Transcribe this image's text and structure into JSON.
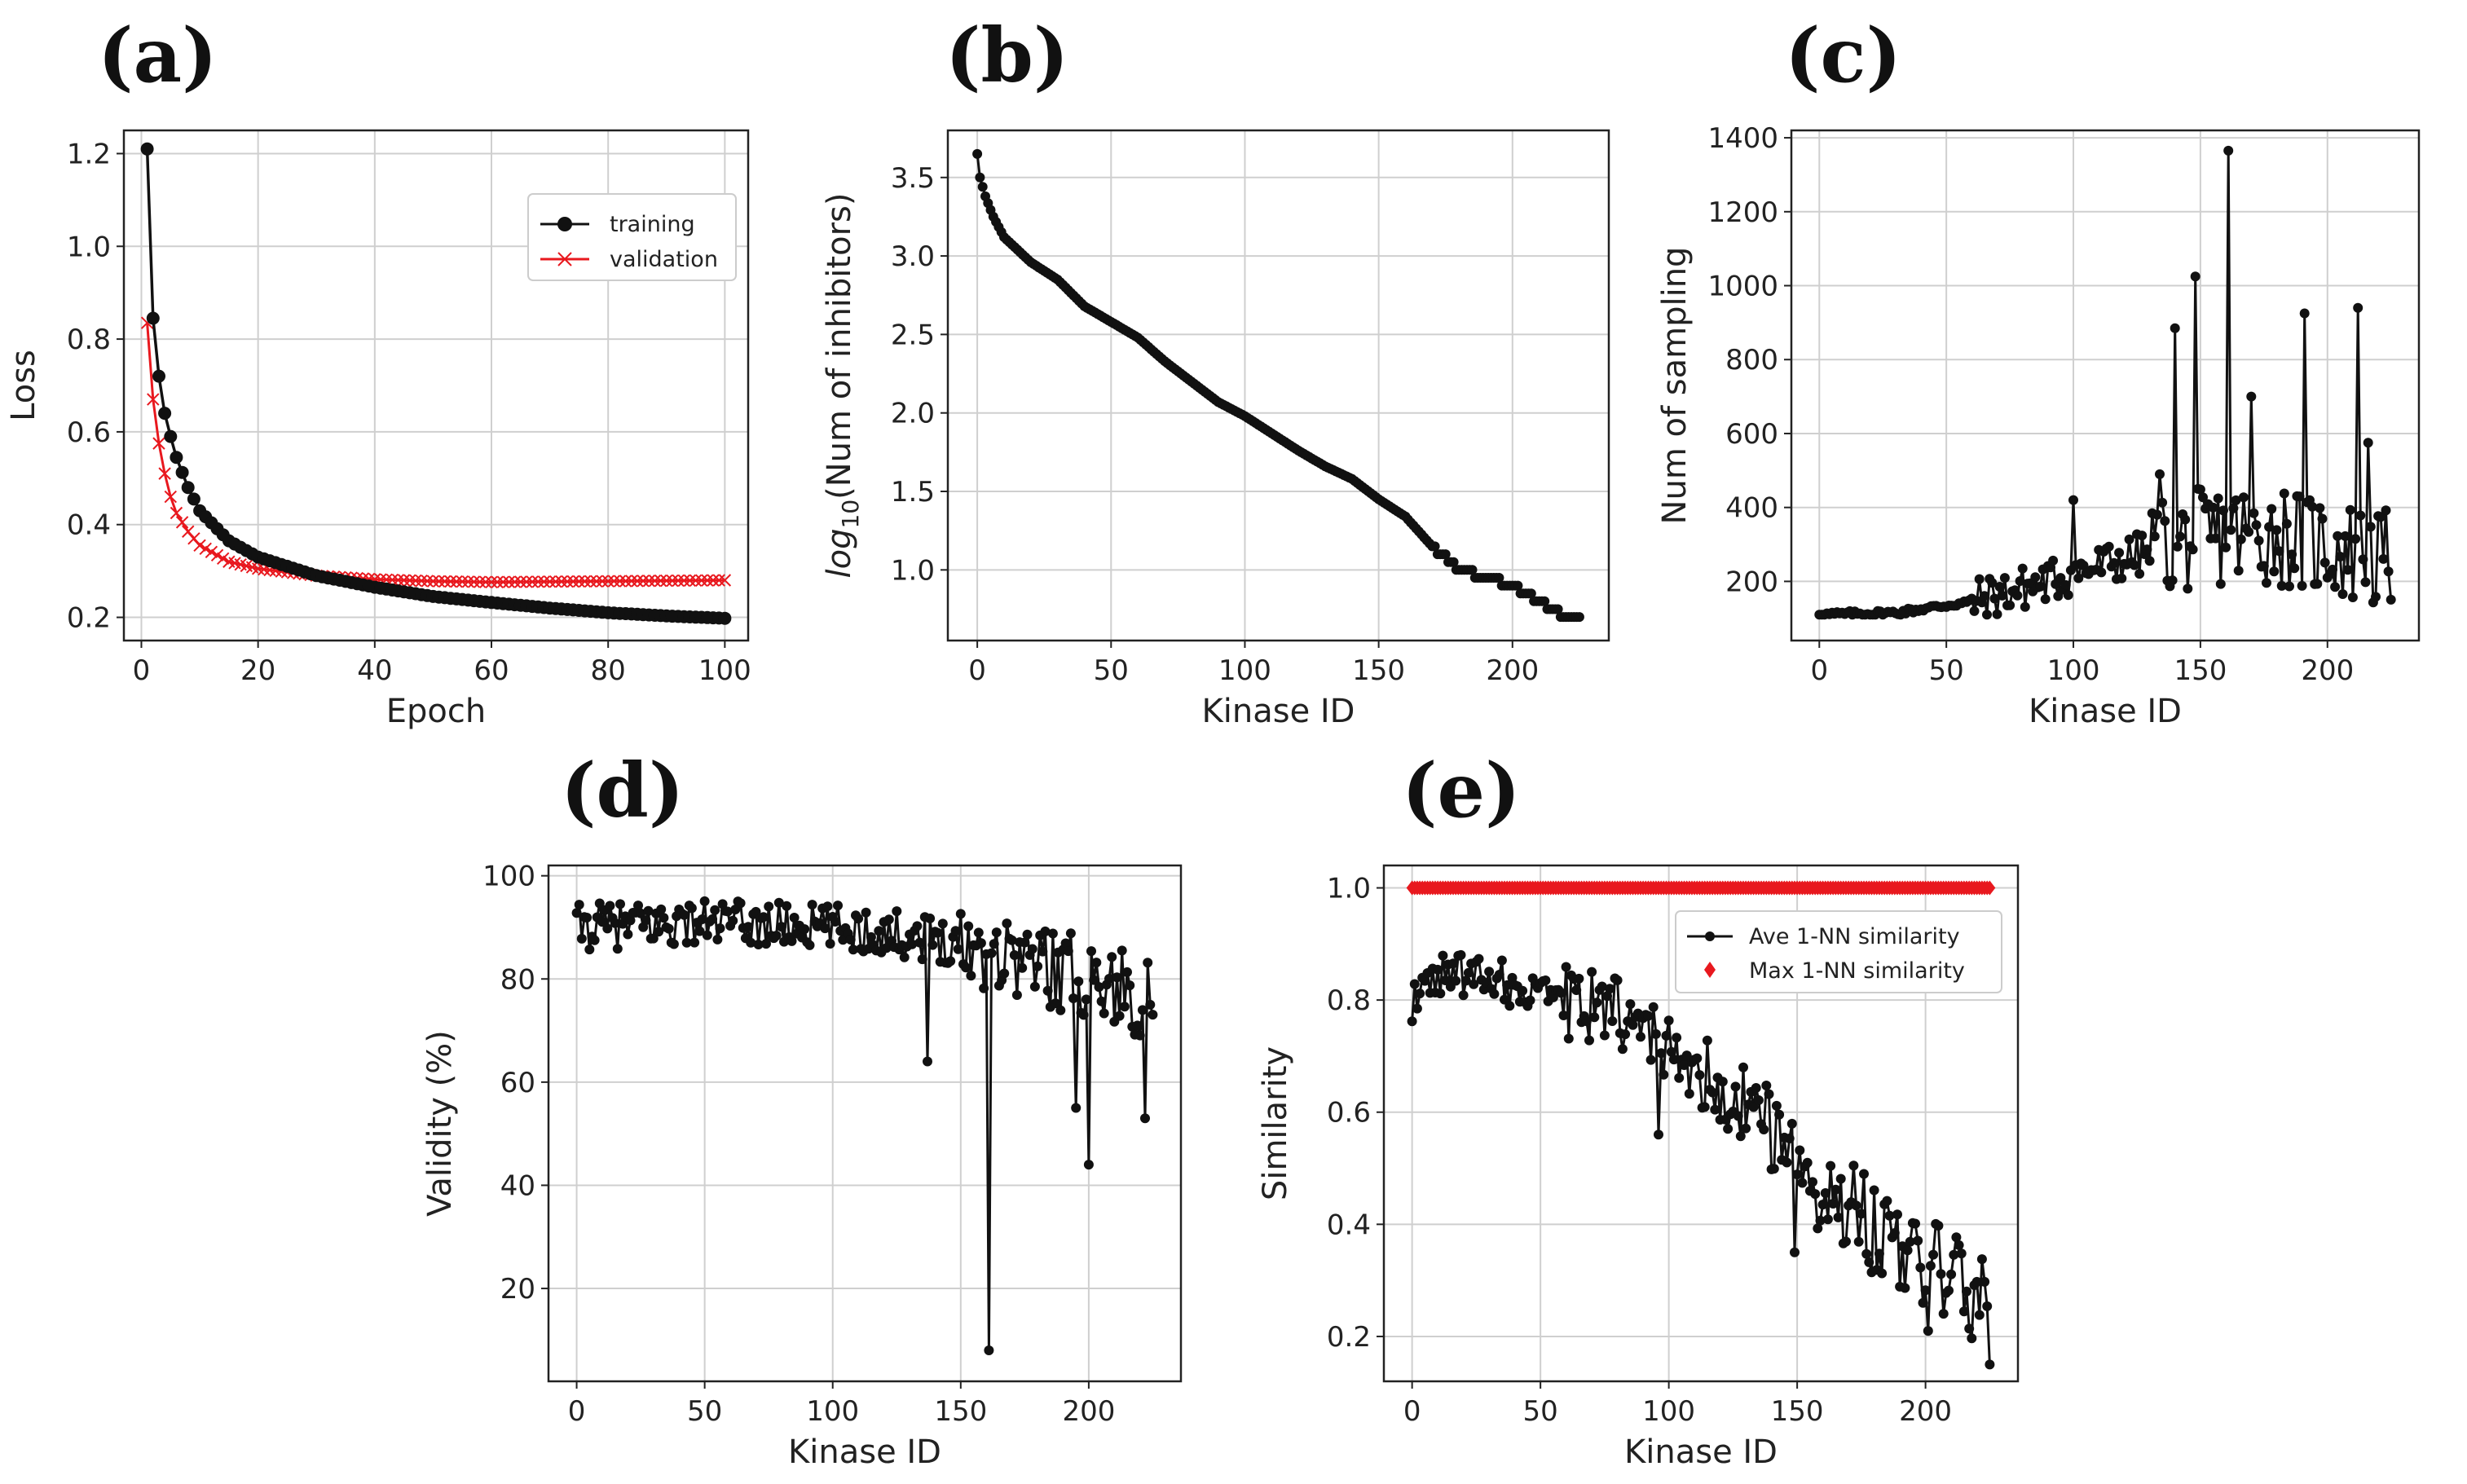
{
  "figure": {
    "colors": {
      "black": "#111111",
      "red": "#e8181e",
      "grid": "#cfcfcf"
    }
  },
  "chart_data": [
    {
      "panel": "(a)",
      "type": "line",
      "xlabel": "Epoch",
      "ylabel": "Loss",
      "xlim": [
        -3,
        104
      ],
      "ylim": [
        0.15,
        1.25
      ],
      "xticks": [
        0,
        20,
        40,
        60,
        80,
        100
      ],
      "xtick_labels": [
        "0",
        "20",
        "40",
        "60",
        "80",
        "100"
      ],
      "yticks": [
        0.2,
        0.4,
        0.6,
        0.8,
        1.0,
        1.2
      ],
      "ytick_labels": [
        "0.2",
        "0.4",
        "0.6",
        "0.8",
        "1.0",
        "1.2"
      ],
      "legend": {
        "placement": "top-right",
        "entries": [
          "training",
          "validation"
        ]
      },
      "series": [
        {
          "name": "training",
          "color": "#111111",
          "marker": "dot",
          "model": {
            "x_from": 1,
            "x_to": 100,
            "step": 1
          },
          "key_points": {
            "x": [
              1,
              2,
              3,
              4,
              5,
              6,
              8,
              10,
              15,
              20,
              30,
              40,
              50,
              60,
              70,
              80,
              90,
              100
            ],
            "y": [
              1.21,
              0.845,
              0.72,
              0.64,
              0.59,
              0.545,
              0.48,
              0.43,
              0.365,
              0.33,
              0.29,
              0.265,
              0.245,
              0.232,
              0.22,
              0.21,
              0.203,
              0.198
            ]
          }
        },
        {
          "name": "validation",
          "color": "#e8181e",
          "marker": "x",
          "key_points": {
            "x": [
              1,
              2,
              3,
              4,
              5,
              6,
              8,
              10,
              15,
              20,
              30,
              40,
              50,
              60,
              70,
              80,
              90,
              100
            ],
            "y": [
              0.835,
              0.67,
              0.575,
              0.51,
              0.46,
              0.425,
              0.385,
              0.355,
              0.32,
              0.305,
              0.29,
              0.282,
              0.278,
              0.276,
              0.277,
              0.278,
              0.279,
              0.28
            ]
          }
        }
      ]
    },
    {
      "panel": "(b)",
      "type": "line",
      "xlabel": "Kinase ID",
      "ylabel_prefix": "log",
      "ylabel_sub": "10",
      "ylabel_rest": "(Num of inhibitors)",
      "xlim": [
        -11,
        236
      ],
      "ylim": [
        0.55,
        3.8
      ],
      "xticks": [
        0,
        50,
        100,
        150,
        200
      ],
      "xtick_labels": [
        "0",
        "50",
        "100",
        "150",
        "200"
      ],
      "yticks": [
        1.0,
        1.5,
        2.0,
        2.5,
        3.0,
        3.5
      ],
      "ytick_labels": [
        "1.0",
        "1.5",
        "2.0",
        "2.5",
        "3.0",
        "3.5"
      ],
      "series": [
        {
          "name": "log10 num of inhibitors",
          "color": "#111111",
          "marker": "dot",
          "key_points": {
            "x": [
              0,
              1,
              3,
              6,
              10,
              20,
              30,
              40,
              50,
              60,
              70,
              80,
              90,
              100,
              110,
              120,
              130,
              140,
              150,
              160,
              170,
              180,
              190,
              200,
              210,
              220,
              225
            ],
            "y": [
              3.65,
              3.5,
              3.38,
              3.25,
              3.12,
              2.96,
              2.85,
              2.68,
              2.58,
              2.48,
              2.33,
              2.2,
              2.07,
              1.98,
              1.87,
              1.76,
              1.66,
              1.58,
              1.45,
              1.34,
              1.15,
              1.0,
              0.95,
              0.9,
              0.8,
              0.7,
              0.7
            ]
          }
        }
      ]
    },
    {
      "panel": "(c)",
      "type": "line",
      "xlabel": "Kinase ID",
      "ylabel": "Num of sampling",
      "xlim": [
        -11,
        236
      ],
      "ylim": [
        40,
        1420
      ],
      "xticks": [
        0,
        50,
        100,
        150,
        200
      ],
      "xtick_labels": [
        "0",
        "50",
        "100",
        "150",
        "200"
      ],
      "yticks": [
        200,
        400,
        600,
        800,
        1000,
        1200,
        1400
      ],
      "ytick_labels": [
        "200",
        "400",
        "600",
        "800",
        "1000",
        "1200",
        "1400"
      ],
      "series": [
        {
          "name": "num of sampling",
          "color": "#111111",
          "marker": "dot",
          "trend": {
            "x": [
              0,
              30,
              60,
              90,
              120,
              150,
              180,
              225
            ],
            "y": [
              110,
              115,
              145,
              200,
              260,
              320,
              330,
              250
            ]
          },
          "peaks": {
            "x": [
              140,
              148,
              161,
              170,
              191,
              212,
              216,
              134,
              100
            ],
            "y": [
              885,
              1025,
              1365,
              700,
              925,
              940,
              575,
              490,
              420
            ]
          }
        }
      ]
    },
    {
      "panel": "(d)",
      "type": "line",
      "xlabel": "Kinase ID",
      "ylabel": "Validity (%)",
      "xlim": [
        -11,
        236
      ],
      "ylim": [
        2,
        102
      ],
      "xticks": [
        0,
        50,
        100,
        150,
        200
      ],
      "xtick_labels": [
        "0",
        "50",
        "100",
        "150",
        "200"
      ],
      "yticks": [
        20,
        40,
        60,
        80,
        100
      ],
      "ytick_labels": [
        "20",
        "40",
        "60",
        "80",
        "100"
      ],
      "series": [
        {
          "name": "validity",
          "color": "#111111",
          "marker": "dot",
          "trend": {
            "x": [
              0,
              50,
              100,
              140,
              170,
              200,
              225
            ],
            "y": [
              90,
              91,
              90,
              88,
              85,
              80,
              76
            ]
          },
          "dips": {
            "x": [
              137,
              161,
              195,
              200,
              222,
              224
            ],
            "y": [
              64,
              8,
              55,
              44,
              53,
              75
            ]
          }
        }
      ]
    },
    {
      "panel": "(e)",
      "type": "line",
      "xlabel": "Kinase ID",
      "ylabel": "Similarity",
      "xlim": [
        -11,
        236
      ],
      "ylim": [
        0.12,
        1.04
      ],
      "xticks": [
        0,
        50,
        100,
        150,
        200
      ],
      "xtick_labels": [
        "0",
        "50",
        "100",
        "150",
        "200"
      ],
      "yticks": [
        0.2,
        0.4,
        0.6,
        0.8,
        1.0
      ],
      "ytick_labels": [
        "0.2",
        "0.4",
        "0.6",
        "0.8",
        "1.0"
      ],
      "legend": {
        "placement": "top-right",
        "entries": [
          "Ave 1-NN similarity",
          "Max 1-NN similarity"
        ]
      },
      "series": [
        {
          "name": "Ave 1-NN similarity",
          "color": "#111111",
          "marker": "dot",
          "trend": {
            "x": [
              0,
              10,
              30,
              60,
              80,
              100,
              120,
              140,
              160,
              180,
              200,
              225
            ],
            "y": [
              0.8,
              0.85,
              0.84,
              0.8,
              0.77,
              0.71,
              0.65,
              0.58,
              0.47,
              0.4,
              0.33,
              0.25
            ]
          },
          "dips": {
            "x": [
              96,
              149,
              201,
              225
            ],
            "y": [
              0.56,
              0.35,
              0.21,
              0.15
            ]
          }
        },
        {
          "name": "Max 1-NN similarity",
          "color": "#e8181e",
          "marker": "diamond",
          "constant": {
            "x_from": 0,
            "x_to": 225,
            "y": 1.0
          }
        }
      ]
    }
  ]
}
